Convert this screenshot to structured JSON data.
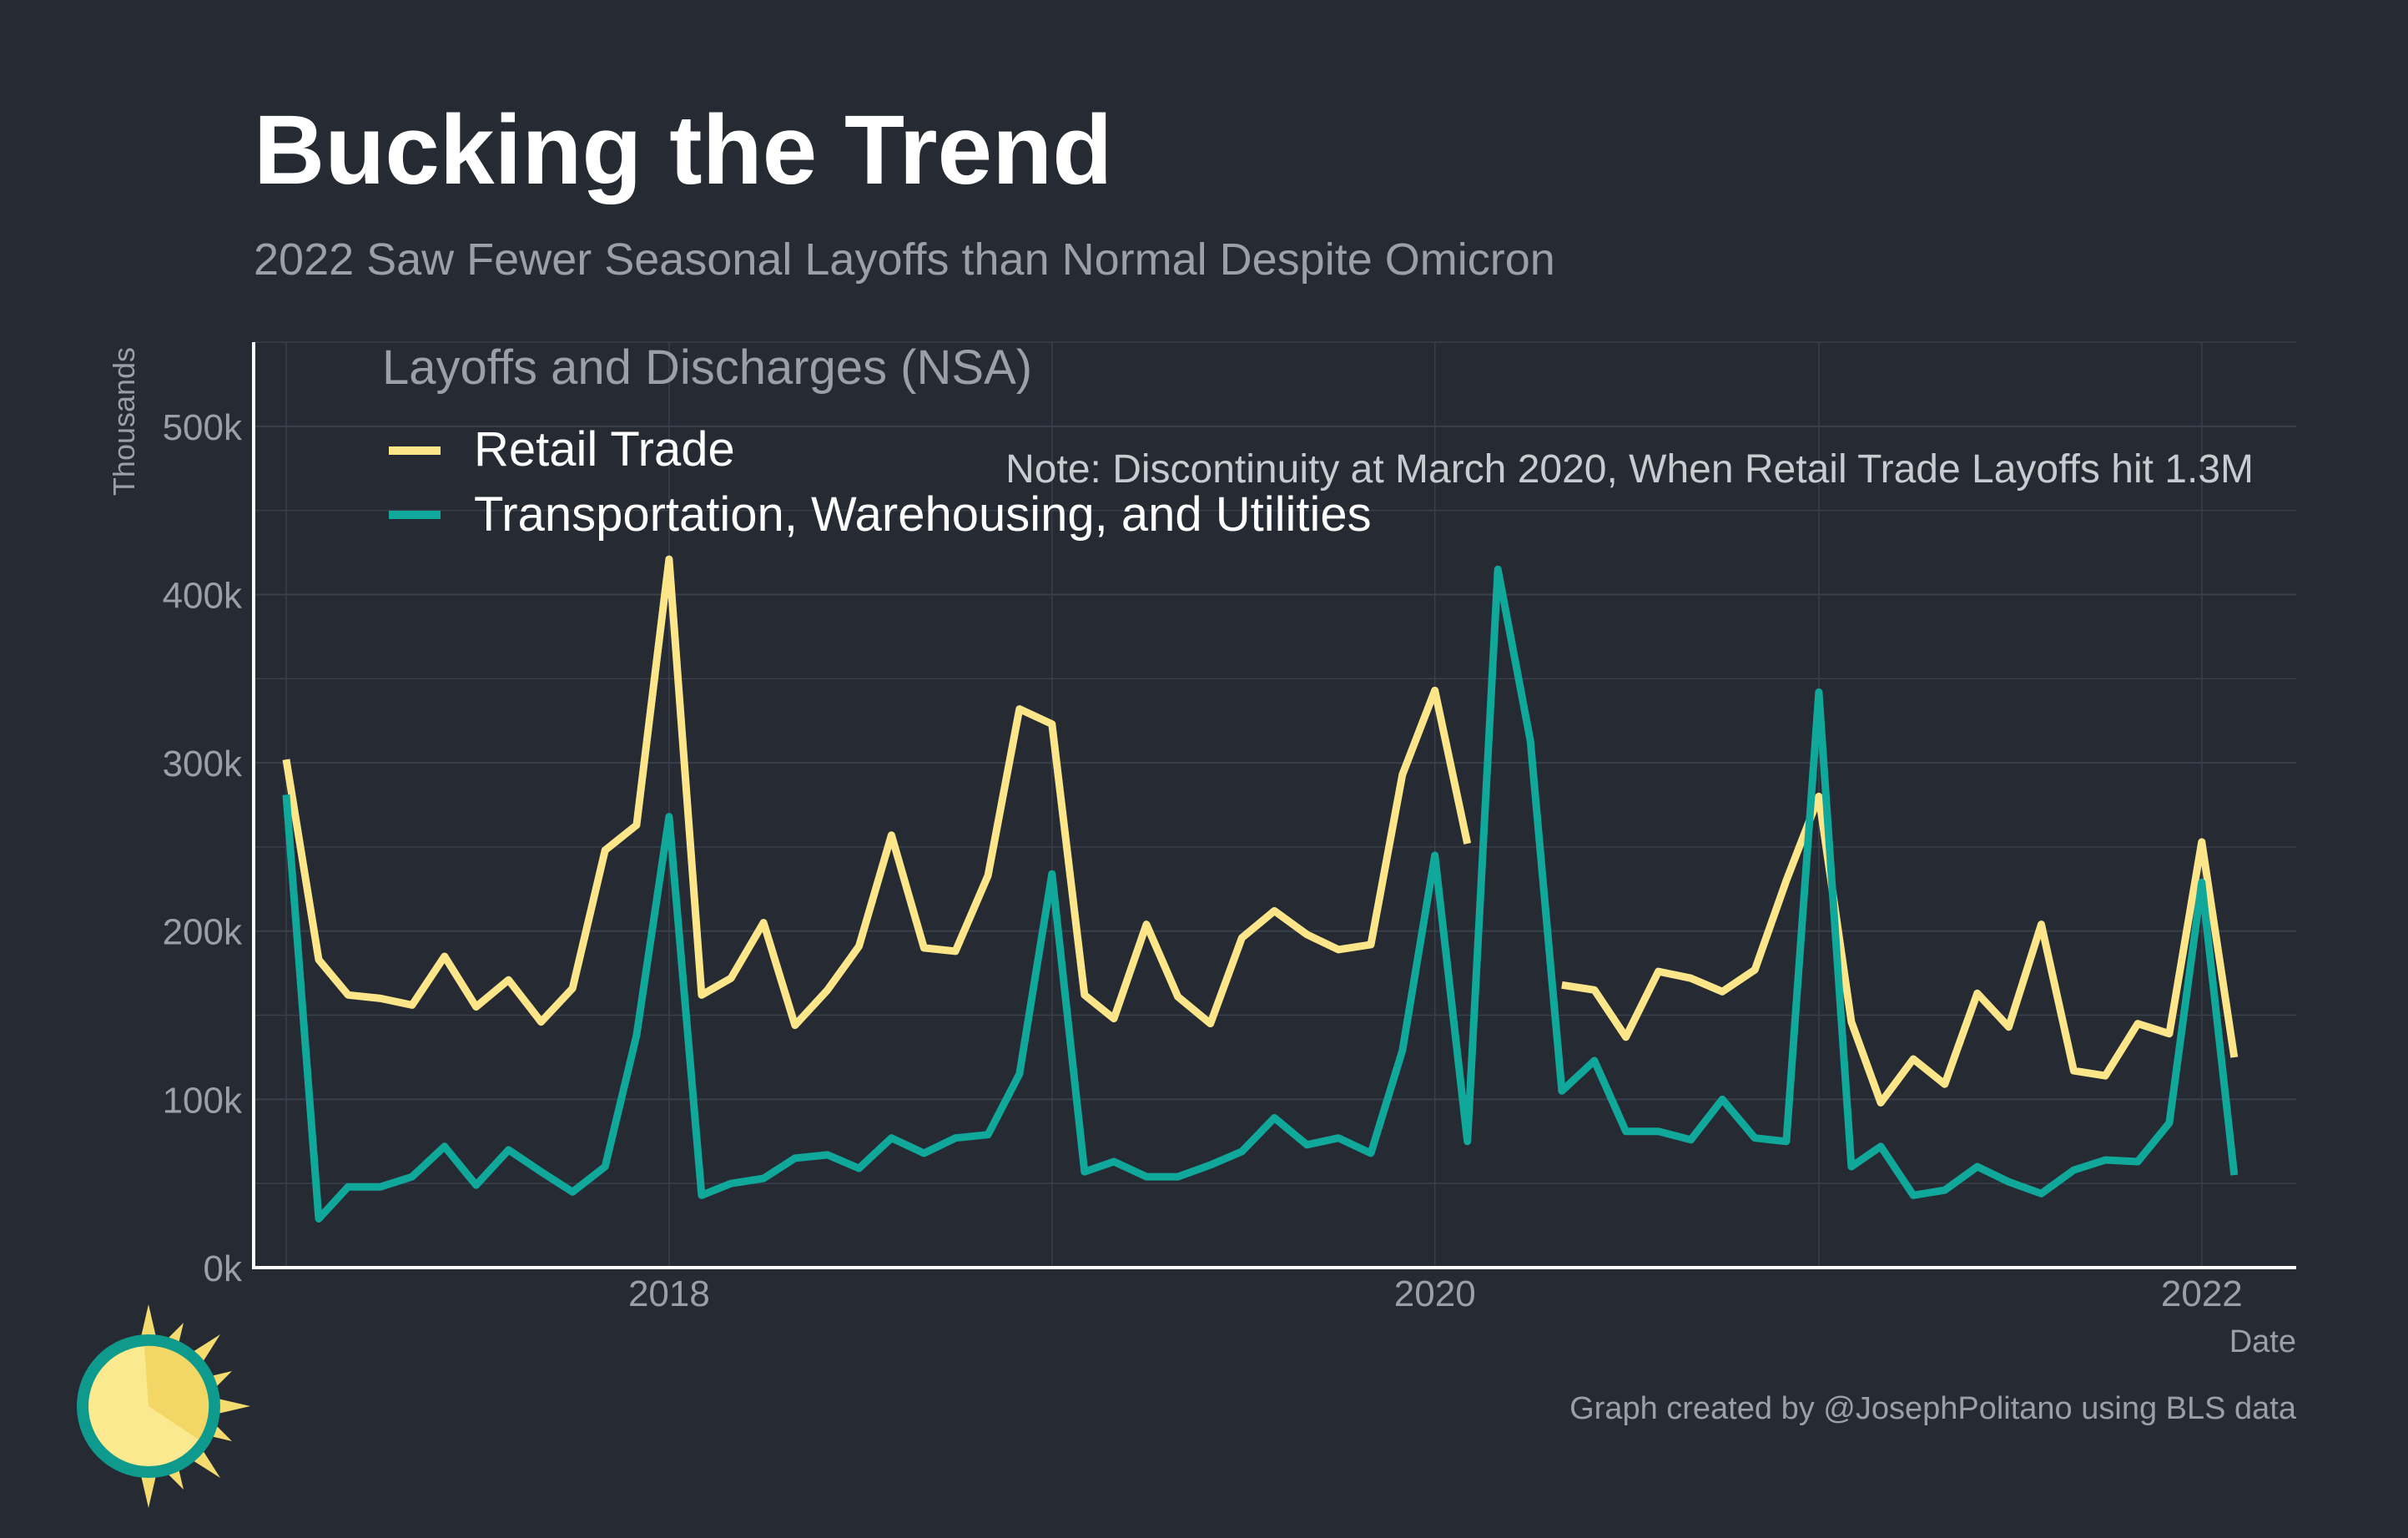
{
  "chart_data": {
    "type": "line",
    "title": "Bucking the Trend",
    "subtitle": "2022 Saw Fewer Seasonal Layoffs than Normal Despite Omicron",
    "legend_title": "Layoffs and Discharges (NSA)",
    "legend_position": "top-left",
    "ylabel": "Thousands",
    "xlabel": "Date",
    "ylim": [
      0,
      550
    ],
    "y_ticks": [
      0,
      100,
      200,
      300,
      400,
      500
    ],
    "y_tick_labels": [
      "0k",
      "100k",
      "200k",
      "300k",
      "400k",
      "500k"
    ],
    "x_range": [
      "2016-12-01",
      "2022-04-01"
    ],
    "x_ticks": [
      "2018-01-01",
      "2020-01-01",
      "2022-01-01"
    ],
    "x_tick_labels": [
      "2018",
      "2020",
      "2022"
    ],
    "grid": true,
    "note": "Note: Discontinuity at March 2020, When Retail Trade Layoffs hit 1.3M",
    "caption": "Graph created by @JosephPolitano using BLS data",
    "series": [
      {
        "name": "Retail Trade",
        "color": "#fde68a",
        "points": [
          [
            "2017-01-01",
            302
          ],
          [
            "2017-02-01",
            183
          ],
          [
            "2017-03-01",
            162
          ],
          [
            "2017-04-01",
            160
          ],
          [
            "2017-05-01",
            156
          ],
          [
            "2017-06-01",
            185
          ],
          [
            "2017-07-01",
            155
          ],
          [
            "2017-08-01",
            171
          ],
          [
            "2017-09-01",
            146
          ],
          [
            "2017-10-01",
            166
          ],
          [
            "2017-11-01",
            248
          ],
          [
            "2017-12-01",
            263
          ],
          [
            "2018-01-01",
            421
          ],
          [
            "2018-02-01",
            162
          ],
          [
            "2018-03-01",
            172
          ],
          [
            "2018-04-01",
            205
          ],
          [
            "2018-05-01",
            144
          ],
          [
            "2018-06-01",
            165
          ],
          [
            "2018-07-01",
            191
          ],
          [
            "2018-08-01",
            257
          ],
          [
            "2018-09-01",
            190
          ],
          [
            "2018-10-01",
            188
          ],
          [
            "2018-11-01",
            233
          ],
          [
            "2018-12-01",
            332
          ],
          [
            "2019-01-01",
            323
          ],
          [
            "2019-02-01",
            162
          ],
          [
            "2019-03-01",
            148
          ],
          [
            "2019-04-01",
            204
          ],
          [
            "2019-05-01",
            161
          ],
          [
            "2019-06-01",
            145
          ],
          [
            "2019-07-01",
            196
          ],
          [
            "2019-08-01",
            212
          ],
          [
            "2019-09-01",
            198
          ],
          [
            "2019-10-01",
            189
          ],
          [
            "2019-11-01",
            192
          ],
          [
            "2019-12-01",
            293
          ],
          [
            "2020-01-01",
            343
          ],
          [
            "2020-02-01",
            252
          ],
          null,
          [
            "2020-05-01",
            168
          ],
          [
            "2020-06-01",
            165
          ],
          [
            "2020-07-01",
            137
          ],
          [
            "2020-08-01",
            176
          ],
          [
            "2020-09-01",
            172
          ],
          [
            "2020-10-01",
            164
          ],
          [
            "2020-11-01",
            177
          ],
          [
            "2020-12-01",
            230
          ],
          [
            "2021-01-01",
            280
          ],
          [
            "2021-02-01",
            146
          ],
          [
            "2021-03-01",
            98
          ],
          [
            "2021-04-01",
            124
          ],
          [
            "2021-05-01",
            109
          ],
          [
            "2021-06-01",
            163
          ],
          [
            "2021-07-01",
            143
          ],
          [
            "2021-08-01",
            204
          ],
          [
            "2021-09-01",
            117
          ],
          [
            "2021-10-01",
            114
          ],
          [
            "2021-11-01",
            145
          ],
          [
            "2021-12-01",
            139
          ],
          [
            "2022-01-01",
            253
          ],
          [
            "2022-02-01",
            125
          ]
        ]
      },
      {
        "name": "Transportation, Warehousing, and Utilities",
        "color": "#0fa89a",
        "points": [
          [
            "2017-01-01",
            281
          ],
          [
            "2017-02-01",
            29
          ],
          [
            "2017-03-01",
            48
          ],
          [
            "2017-04-01",
            48
          ],
          [
            "2017-05-01",
            54
          ],
          [
            "2017-06-01",
            72
          ],
          [
            "2017-07-01",
            49
          ],
          [
            "2017-08-01",
            70
          ],
          [
            "2017-09-01",
            57
          ],
          [
            "2017-10-01",
            45
          ],
          [
            "2017-11-01",
            60
          ],
          [
            "2017-12-01",
            138
          ],
          [
            "2018-01-01",
            268
          ],
          [
            "2018-02-01",
            43
          ],
          [
            "2018-03-01",
            50
          ],
          [
            "2018-04-01",
            53
          ],
          [
            "2018-05-01",
            65
          ],
          [
            "2018-06-01",
            67
          ],
          [
            "2018-07-01",
            59
          ],
          [
            "2018-08-01",
            77
          ],
          [
            "2018-09-01",
            68
          ],
          [
            "2018-10-01",
            77
          ],
          [
            "2018-11-01",
            79
          ],
          [
            "2018-12-01",
            115
          ],
          [
            "2019-01-01",
            234
          ],
          [
            "2019-02-01",
            57
          ],
          [
            "2019-03-01",
            63
          ],
          [
            "2019-04-01",
            54
          ],
          [
            "2019-05-01",
            54
          ],
          [
            "2019-06-01",
            61
          ],
          [
            "2019-07-01",
            69
          ],
          [
            "2019-08-01",
            89
          ],
          [
            "2019-09-01",
            73
          ],
          [
            "2019-10-01",
            77
          ],
          [
            "2019-11-01",
            68
          ],
          [
            "2019-12-01",
            129
          ],
          [
            "2020-01-01",
            245
          ],
          [
            "2020-02-01",
            75
          ],
          [
            "2020-03-01",
            415
          ],
          [
            "2020-04-01",
            313
          ],
          [
            "2020-05-01",
            105
          ],
          [
            "2020-06-01",
            123
          ],
          [
            "2020-07-01",
            81
          ],
          [
            "2020-08-01",
            81
          ],
          [
            "2020-09-01",
            76
          ],
          [
            "2020-10-01",
            100
          ],
          [
            "2020-11-01",
            77
          ],
          [
            "2020-12-01",
            75
          ],
          [
            "2021-01-01",
            342
          ],
          [
            "2021-02-01",
            60
          ],
          [
            "2021-03-01",
            72
          ],
          [
            "2021-04-01",
            43
          ],
          [
            "2021-05-01",
            46
          ],
          [
            "2021-06-01",
            60
          ],
          [
            "2021-07-01",
            51
          ],
          [
            "2021-08-01",
            44
          ],
          [
            "2021-09-01",
            58
          ],
          [
            "2021-10-01",
            64
          ],
          [
            "2021-11-01",
            63
          ],
          [
            "2021-12-01",
            86
          ],
          [
            "2022-01-01",
            229
          ],
          [
            "2022-02-01",
            55
          ]
        ]
      }
    ]
  }
}
